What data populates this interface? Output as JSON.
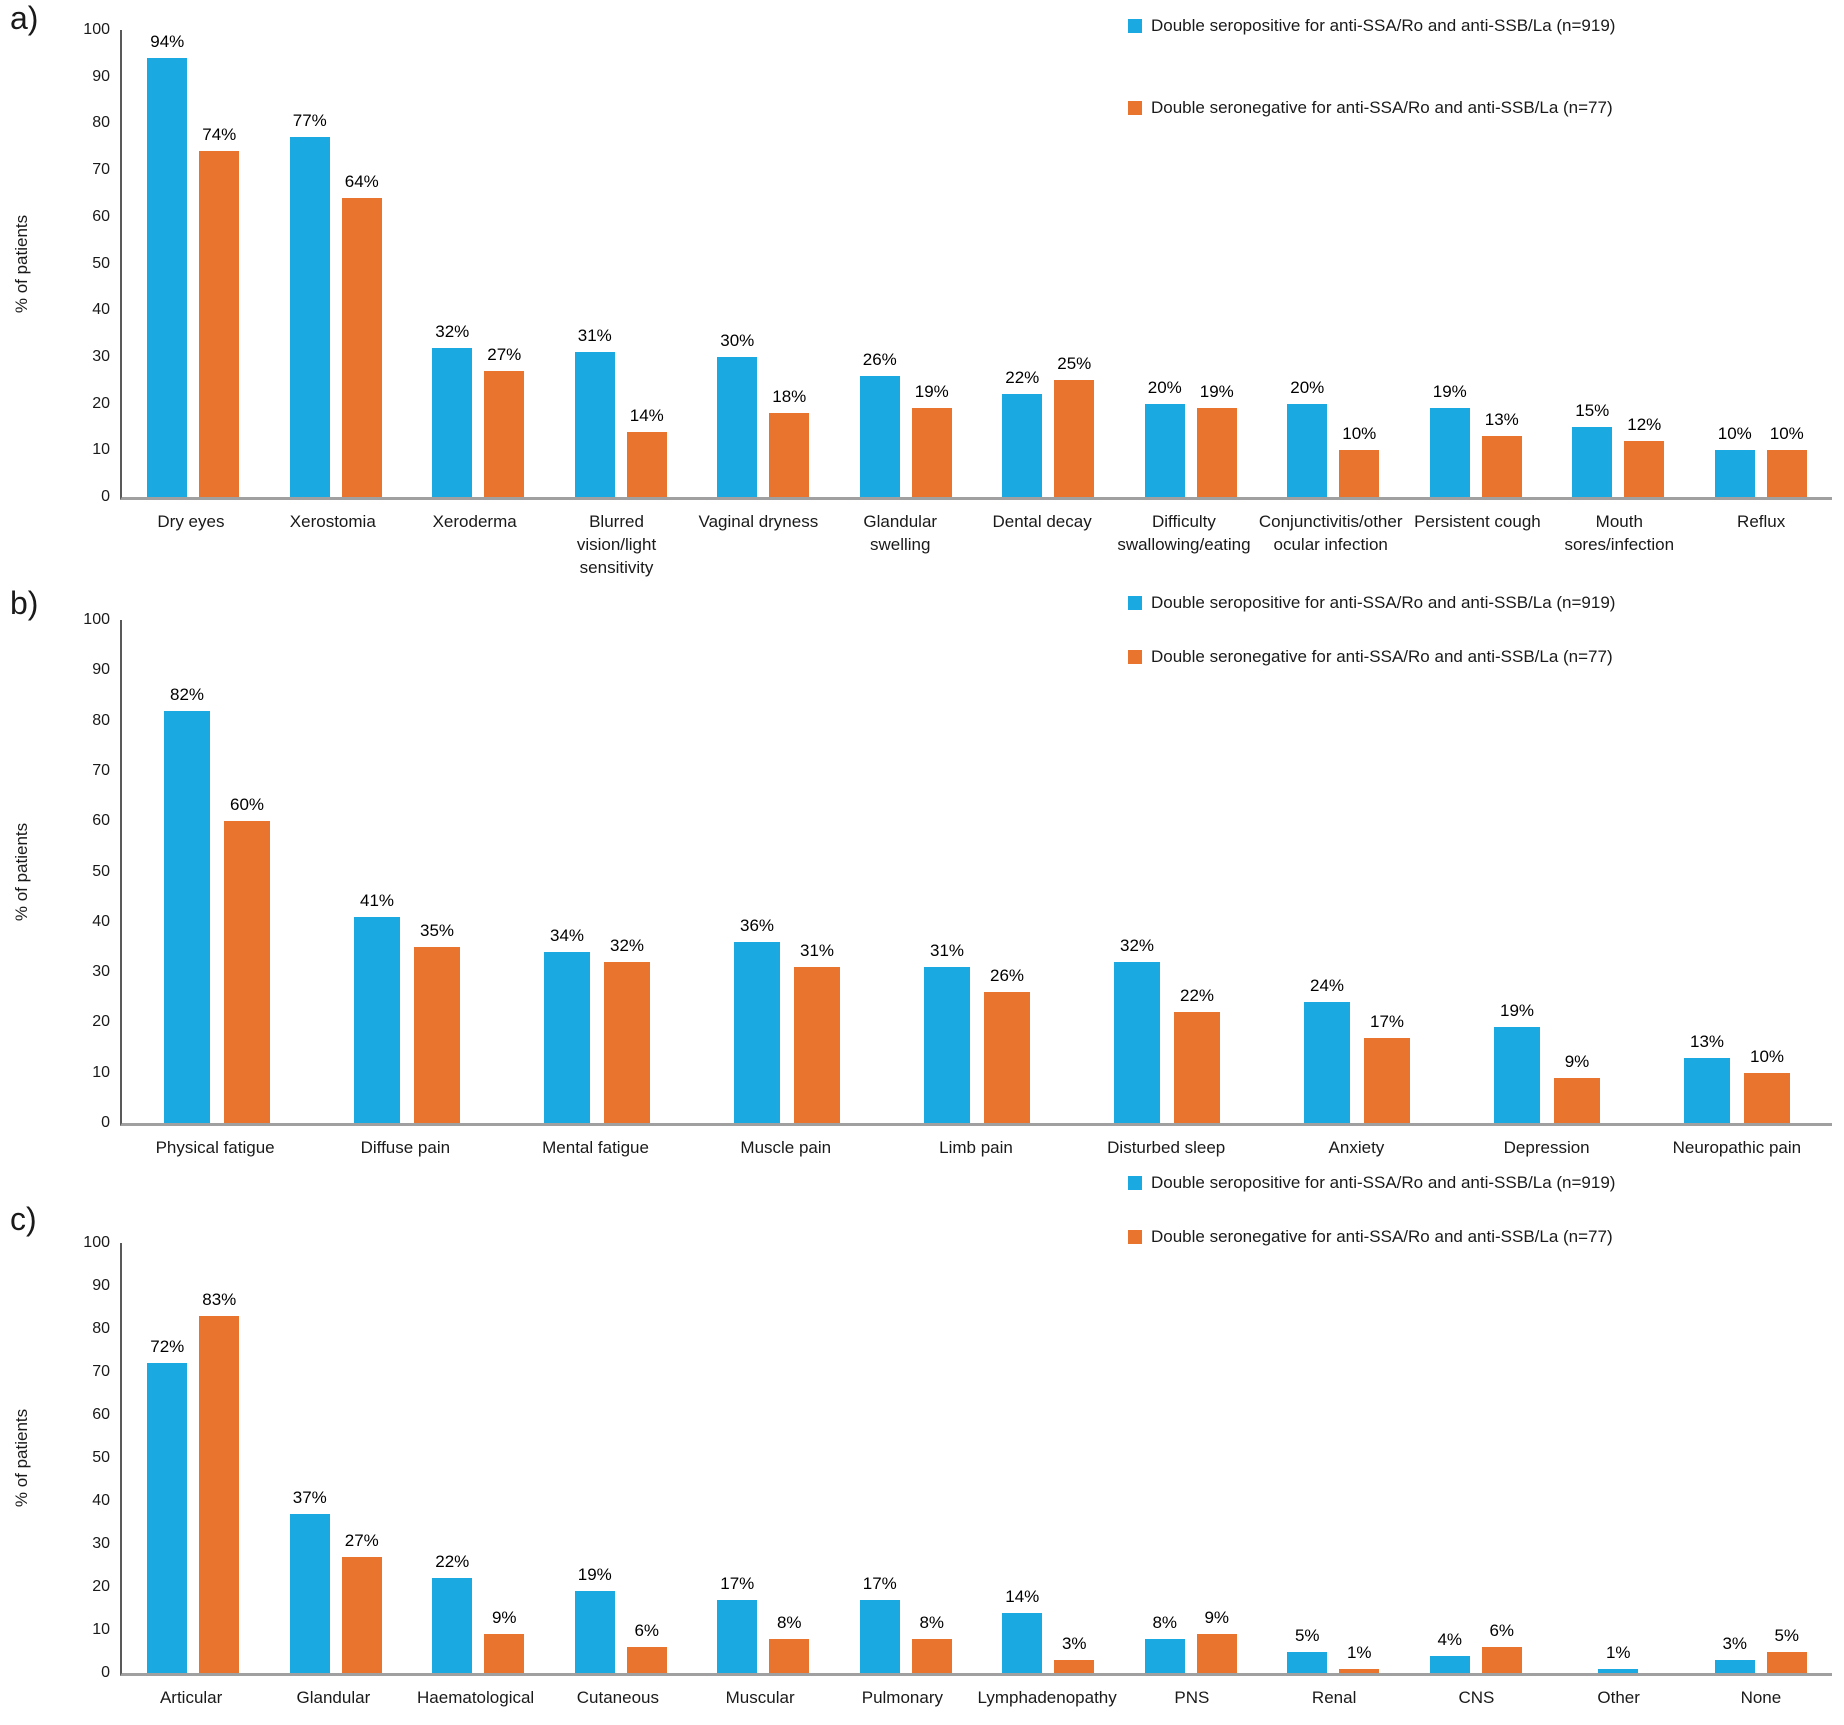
{
  "figure": {
    "type": "three-panel grouped bar chart",
    "background": "#ffffff"
  },
  "colors": {
    "seropositive": "#1BA9E1",
    "seronegative": "#E8742E",
    "y_axis_line": "#595959",
    "x_axis_line": "#a0a0a0"
  },
  "chart_data": [
    {
      "panel_label": "a)",
      "type": "bar",
      "title": "",
      "xlabel": "",
      "ylabel": "% of patients",
      "ylim": [
        0,
        100
      ],
      "yticks": [
        0,
        10,
        20,
        30,
        40,
        50,
        60,
        70,
        80,
        90,
        100
      ],
      "grid": false,
      "legend_position": "top-right",
      "unit": "%",
      "categories": [
        "Dry eyes",
        "Xerostomia",
        "Xeroderma",
        "Blurred vision/light sensitivity",
        "Vaginal dryness",
        "Glandular swelling",
        "Dental decay",
        "Difficulty swallowing/eating",
        "Conjunctivitis/other ocular infection",
        "Persistent cough",
        "Mouth sores/infection",
        "Reflux"
      ],
      "series": [
        {
          "key": "seropositive",
          "name": "Double seropositive for anti-SSA/Ro and anti-SSB/La (n=919)",
          "color": "#1BA9E1",
          "values": [
            94,
            77,
            32,
            31,
            30,
            26,
            22,
            20,
            20,
            19,
            15,
            10
          ]
        },
        {
          "key": "seronegative",
          "name": "Double seronegative for anti-SSA/Ro and anti-SSB/La (n=77)",
          "color": "#E8742E",
          "values": [
            74,
            64,
            27,
            14,
            18,
            19,
            25,
            19,
            10,
            13,
            12,
            10
          ]
        }
      ]
    },
    {
      "panel_label": "b)",
      "type": "bar",
      "title": "",
      "xlabel": "",
      "ylabel": "% of patients",
      "ylim": [
        0,
        100
      ],
      "yticks": [
        0,
        10,
        20,
        30,
        40,
        50,
        60,
        70,
        80,
        90,
        100
      ],
      "grid": false,
      "legend_position": "top-right",
      "unit": "%",
      "categories": [
        "Physical fatigue",
        "Diffuse pain",
        "Mental fatigue",
        "Muscle pain",
        "Limb pain",
        "Disturbed sleep",
        "Anxiety",
        "Depression",
        "Neuropathic pain"
      ],
      "series": [
        {
          "key": "seropositive",
          "name": "Double seropositive for anti-SSA/Ro and anti-SSB/La (n=919)",
          "color": "#1BA9E1",
          "values": [
            82,
            41,
            34,
            36,
            31,
            32,
            24,
            19,
            13
          ]
        },
        {
          "key": "seronegative",
          "name": "Double seronegative for anti-SSA/Ro and anti-SSB/La (n=77)",
          "color": "#E8742E",
          "values": [
            60,
            35,
            32,
            31,
            26,
            22,
            17,
            9,
            10
          ]
        }
      ]
    },
    {
      "panel_label": "c)",
      "type": "bar",
      "title": "",
      "xlabel": "",
      "ylabel": "% of patients",
      "ylim": [
        0,
        100
      ],
      "yticks": [
        0,
        10,
        20,
        30,
        40,
        50,
        60,
        70,
        80,
        90,
        100
      ],
      "grid": false,
      "legend_position": "top-right",
      "unit": "%",
      "categories": [
        "Articular",
        "Glandular",
        "Haematological",
        "Cutaneous",
        "Muscular",
        "Pulmonary",
        "Lymphadenopathy",
        "PNS",
        "Renal",
        "CNS",
        "Other",
        "None"
      ],
      "series": [
        {
          "key": "seropositive",
          "name": "Double seropositive for anti-SSA/Ro and anti-SSB/La (n=919)",
          "color": "#1BA9E1",
          "values": [
            72,
            37,
            22,
            19,
            17,
            17,
            14,
            8,
            5,
            4,
            1,
            3
          ]
        },
        {
          "key": "seronegative",
          "name": "Double seronegative for anti-SSA/Ro and anti-SSB/La (n=77)",
          "color": "#E8742E",
          "values": [
            83,
            27,
            9,
            6,
            8,
            8,
            3,
            9,
            1,
            6,
            null,
            5
          ]
        }
      ]
    }
  ]
}
